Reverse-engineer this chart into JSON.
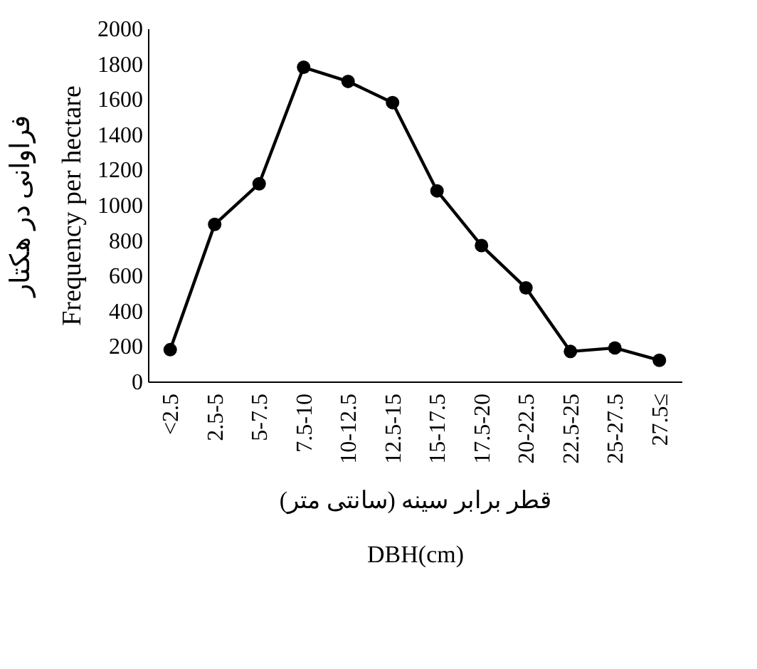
{
  "chart_data": {
    "type": "line",
    "xlabel": "قطر برابر سینه (سانتی متر)\nDBH(cm)",
    "ylabel": "فراوانی در هکتار\nFrequency per hectare",
    "categories": [
      "<2.5",
      "2.5-5",
      "5-7.5",
      "7.5-10",
      "10-12.5",
      "12.5-15",
      "15-17.5",
      "17.5-20",
      "20-22.5",
      "22.5-25",
      "25-27.5",
      "27.5≤"
    ],
    "series": [
      {
        "color": "#000000",
        "values": [
          180,
          890,
          1120,
          1780,
          1700,
          1580,
          1080,
          770,
          530,
          170,
          190,
          120
        ]
      }
    ],
    "ylim": [
      0,
      2000
    ],
    "yticks": [
      0,
      200,
      400,
      600,
      800,
      1000,
      1200,
      1400,
      1600,
      1800,
      2000
    ],
    "grid": false,
    "legend": false,
    "marker": "circle",
    "line_style": "solid"
  }
}
